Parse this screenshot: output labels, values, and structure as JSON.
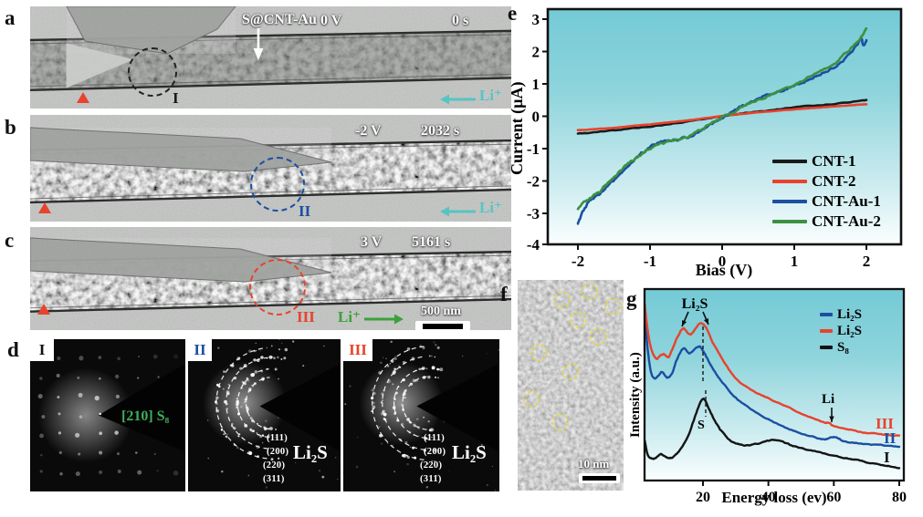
{
  "panel_a": {
    "label": "a",
    "sample": "S@CNT-Au",
    "voltage": "0 V",
    "time": "0 s",
    "region": "I",
    "ion": "Li⁺"
  },
  "panel_b": {
    "label": "b",
    "voltage": "-2 V",
    "time": "2032 s",
    "region": "II",
    "ion": "Li⁺"
  },
  "panel_c": {
    "label": "c",
    "voltage": "3 V",
    "time": "5161 s",
    "region": "III",
    "ion": "Li⁺",
    "scalebar": "500 nm"
  },
  "panel_d": {
    "label": "d",
    "pattern1": {
      "region": "I",
      "zone_axis": "[210] S₈"
    },
    "pattern2": {
      "region": "II",
      "phase": "Li₂S",
      "rings": [
        "(111)",
        "(200)",
        "(220)",
        "(311)"
      ]
    },
    "pattern3": {
      "region": "III",
      "phase": "Li₂S",
      "rings": [
        "(111)",
        "(200)",
        "(220)",
        "(311)"
      ]
    }
  },
  "panel_e": {
    "label": "e"
  },
  "panel_f": {
    "label": "f",
    "scalebar": "10 nm",
    "circles": [
      [
        0.68,
        0.055
      ],
      [
        0.9,
        0.125
      ],
      [
        0.42,
        0.095
      ],
      [
        0.57,
        0.19
      ],
      [
        0.76,
        0.27
      ],
      [
        0.2,
        0.345
      ],
      [
        0.5,
        0.435
      ],
      [
        0.13,
        0.565
      ],
      [
        0.4,
        0.675
      ]
    ],
    "circle_color": "#e6d93e"
  },
  "panel_g": {
    "label": "g"
  },
  "colors": {
    "ion_cyan": "#56c5c2",
    "ion_green": "#3aa23a",
    "marker_red": "#e8432c",
    "circle_a": "#222222",
    "circle_b": "#1c4fa1",
    "circle_c": "#e8432c",
    "zone_green": "#3fae5a",
    "plot_bg_top": "#74cad6",
    "plot_bg_bottom": "#fbfefe"
  },
  "chart_data": [
    {
      "id": "e",
      "type": "line",
      "xlabel": "Bias (V)",
      "ylabel": "Current (µA)",
      "xticks": [
        -2,
        -1,
        0,
        1,
        2
      ],
      "yticks": [
        3,
        2,
        1,
        0,
        -1,
        -2,
        -3,
        -4
      ],
      "xlim": [
        -2.45,
        2.5
      ],
      "ylim": [
        -4.05,
        3.3
      ],
      "grid": false,
      "legend_position": "center-right",
      "series": [
        {
          "name": "CNT-1",
          "color": "#1a1a1a",
          "noise": 0.025,
          "points": [
            [
              -2,
              -0.54
            ],
            [
              -1.6,
              -0.46
            ],
            [
              -1.2,
              -0.36
            ],
            [
              -0.8,
              -0.26
            ],
            [
              -0.4,
              -0.14
            ],
            [
              0,
              0
            ],
            [
              0.4,
              0.12
            ],
            [
              0.8,
              0.22
            ],
            [
              1.2,
              0.31
            ],
            [
              1.6,
              0.4
            ],
            [
              2,
              0.5
            ]
          ]
        },
        {
          "name": "CNT-2",
          "color": "#e8432c",
          "noise": 0.008,
          "points": [
            [
              -2,
              -0.43
            ],
            [
              -1.6,
              -0.37
            ],
            [
              -1.2,
              -0.29
            ],
            [
              -0.8,
              -0.2
            ],
            [
              -0.4,
              -0.1
            ],
            [
              0,
              0.01
            ],
            [
              0.4,
              0.1
            ],
            [
              0.8,
              0.18
            ],
            [
              1.2,
              0.25
            ],
            [
              1.6,
              0.31
            ],
            [
              2,
              0.37
            ]
          ]
        },
        {
          "name": "CNT-Au-1",
          "color": "#1c4fa1",
          "noise": 0.05,
          "points": [
            [
              -2,
              -3.3
            ],
            [
              -1.95,
              -3.05
            ],
            [
              -1.88,
              -2.75
            ],
            [
              -1.8,
              -2.55
            ],
            [
              -1.7,
              -2.38
            ],
            [
              -1.6,
              -2.18
            ],
            [
              -1.5,
              -1.98
            ],
            [
              -1.4,
              -1.76
            ],
            [
              -1.3,
              -1.5
            ],
            [
              -1.2,
              -1.32
            ],
            [
              -1.1,
              -1.12
            ],
            [
              -1,
              -0.95
            ],
            [
              -0.9,
              -0.84
            ],
            [
              -0.75,
              -0.76
            ],
            [
              -0.6,
              -0.7
            ],
            [
              -0.45,
              -0.62
            ],
            [
              -0.3,
              -0.45
            ],
            [
              -0.15,
              -0.25
            ],
            [
              0,
              -0.05
            ],
            [
              0.15,
              0.15
            ],
            [
              0.3,
              0.33
            ],
            [
              0.45,
              0.5
            ],
            [
              0.6,
              0.63
            ],
            [
              0.75,
              0.74
            ],
            [
              0.9,
              0.85
            ],
            [
              1.05,
              0.97
            ],
            [
              1.2,
              1.13
            ],
            [
              1.35,
              1.3
            ],
            [
              1.5,
              1.45
            ],
            [
              1.65,
              1.68
            ],
            [
              1.78,
              1.95
            ],
            [
              1.88,
              2.25
            ],
            [
              1.93,
              2.42
            ],
            [
              1.96,
              2.18
            ],
            [
              2,
              2.35
            ]
          ]
        },
        {
          "name": "CNT-Au-2",
          "color": "#3c9140",
          "noise": 0.05,
          "points": [
            [
              -2,
              -2.85
            ],
            [
              -1.9,
              -2.62
            ],
            [
              -1.8,
              -2.48
            ],
            [
              -1.7,
              -2.32
            ],
            [
              -1.6,
              -2.1
            ],
            [
              -1.5,
              -1.88
            ],
            [
              -1.38,
              -1.62
            ],
            [
              -1.25,
              -1.4
            ],
            [
              -1.12,
              -1.18
            ],
            [
              -1,
              -1.0
            ],
            [
              -0.88,
              -0.88
            ],
            [
              -0.75,
              -0.8
            ],
            [
              -0.6,
              -0.73
            ],
            [
              -0.45,
              -0.6
            ],
            [
              -0.3,
              -0.42
            ],
            [
              -0.15,
              -0.22
            ],
            [
              0,
              -0.02
            ],
            [
              0.2,
              0.2
            ],
            [
              0.4,
              0.4
            ],
            [
              0.6,
              0.6
            ],
            [
              0.8,
              0.78
            ],
            [
              1,
              0.97
            ],
            [
              1.2,
              1.2
            ],
            [
              1.4,
              1.45
            ],
            [
              1.55,
              1.65
            ],
            [
              1.7,
              1.92
            ],
            [
              1.8,
              2.12
            ],
            [
              1.9,
              2.35
            ],
            [
              2,
              2.72
            ]
          ]
        }
      ]
    },
    {
      "id": "g",
      "type": "line",
      "xlabel": "Energy loss (ev)",
      "ylabel": "Intensity (a.u.)",
      "xticks": [
        20,
        40,
        60,
        80
      ],
      "xlim": [
        2.14,
        81.4
      ],
      "ylim": [
        0,
        1
      ],
      "grid": false,
      "legend_position": "top-right",
      "legend": [
        {
          "label": "Li₂S",
          "color": "#1c4fa1"
        },
        {
          "label": "Li₂S",
          "color": "#e8432c"
        },
        {
          "label": "S₈",
          "color": "#141414"
        }
      ],
      "series": [
        {
          "name": "S₈",
          "end_label": "I",
          "color": "#141414",
          "noise": 0.004,
          "points": [
            [
              2.2,
              0.21
            ],
            [
              3,
              0.14
            ],
            [
              4,
              0.115
            ],
            [
              5.5,
              0.118
            ],
            [
              7,
              0.138
            ],
            [
              8.5,
              0.124
            ],
            [
              10,
              0.115
            ],
            [
              12,
              0.138
            ],
            [
              14,
              0.185
            ],
            [
              16,
              0.255
            ],
            [
              18,
              0.355
            ],
            [
              20,
              0.43
            ],
            [
              22,
              0.365
            ],
            [
              24,
              0.3
            ],
            [
              26,
              0.25
            ],
            [
              28,
              0.213
            ],
            [
              30,
              0.195
            ],
            [
              33,
              0.185
            ],
            [
              36,
              0.19
            ],
            [
              40,
              0.208
            ],
            [
              43,
              0.21
            ],
            [
              46,
              0.19
            ],
            [
              50,
              0.168
            ],
            [
              55,
              0.15
            ],
            [
              60,
              0.128
            ],
            [
              65,
              0.113
            ],
            [
              70,
              0.095
            ],
            [
              75,
              0.08
            ],
            [
              80,
              0.067
            ]
          ]
        },
        {
          "name": "Li₂S",
          "end_label": "II",
          "color": "#1c4fa1",
          "noise": 0.004,
          "points": [
            [
              2.2,
              0.87
            ],
            [
              3,
              0.7
            ],
            [
              4,
              0.575
            ],
            [
              5,
              0.535
            ],
            [
              6.5,
              0.55
            ],
            [
              7.5,
              0.566
            ],
            [
              9,
              0.54
            ],
            [
              10.5,
              0.558
            ],
            [
              12,
              0.628
            ],
            [
              14,
              0.688
            ],
            [
              16,
              0.665
            ],
            [
              18.5,
              0.7
            ],
            [
              20,
              0.678
            ],
            [
              22,
              0.615
            ],
            [
              25,
              0.533
            ],
            [
              28,
              0.468
            ],
            [
              30,
              0.43
            ],
            [
              34,
              0.378
            ],
            [
              40,
              0.319
            ],
            [
              45,
              0.278
            ],
            [
              50,
              0.248
            ],
            [
              54,
              0.228
            ],
            [
              57,
              0.214
            ],
            [
              59,
              0.222
            ],
            [
              61,
              0.223
            ],
            [
              63,
              0.206
            ],
            [
              66,
              0.198
            ],
            [
              70,
              0.19
            ],
            [
              75,
              0.182
            ],
            [
              80,
              0.176
            ]
          ]
        },
        {
          "name": "Li₂S",
          "end_label": "III",
          "color": "#e8432c",
          "noise": 0.004,
          "points": [
            [
              2.2,
              0.92
            ],
            [
              3,
              0.8
            ],
            [
              4,
              0.7
            ],
            [
              5.5,
              0.638
            ],
            [
              7,
              0.65
            ],
            [
              8,
              0.66
            ],
            [
              9.5,
              0.645
            ],
            [
              11,
              0.7
            ],
            [
              12.5,
              0.758
            ],
            [
              14,
              0.795
            ],
            [
              16,
              0.762
            ],
            [
              17.5,
              0.79
            ],
            [
              19,
              0.82
            ],
            [
              21,
              0.798
            ],
            [
              23,
              0.72
            ],
            [
              26,
              0.63
            ],
            [
              30,
              0.533
            ],
            [
              35,
              0.47
            ],
            [
              40,
              0.43
            ],
            [
              45,
              0.39
            ],
            [
              50,
              0.352
            ],
            [
              54,
              0.323
            ],
            [
              56.5,
              0.305
            ],
            [
              58.5,
              0.3
            ],
            [
              60,
              0.285
            ],
            [
              65,
              0.266
            ],
            [
              70,
              0.248
            ],
            [
              75,
              0.24
            ],
            [
              80,
              0.233
            ]
          ]
        }
      ],
      "annotations": [
        {
          "text": "Li₂S",
          "at_ev": [
            14,
            19
          ]
        },
        {
          "text": "S",
          "at_ev": [
            20
          ]
        },
        {
          "text": "Li",
          "at_ev": [
            58
          ]
        }
      ]
    }
  ]
}
